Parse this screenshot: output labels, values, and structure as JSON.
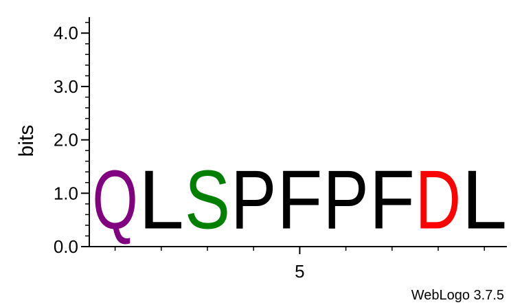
{
  "chart_data": {
    "type": "sequence-logo",
    "ylabel": "bits",
    "ylim": [
      0,
      4.3
    ],
    "yticks": [
      "0.0",
      "1.0",
      "2.0",
      "3.0",
      "4.0"
    ],
    "xticks": [
      {
        "position": 5,
        "label": "5"
      }
    ],
    "positions": [
      1,
      2,
      3,
      4,
      5,
      6,
      7,
      8,
      9
    ],
    "letters": [
      "Q",
      "L",
      "S",
      "P",
      "F",
      "P",
      "F",
      "D",
      "L"
    ],
    "values": [
      1.75,
      1.75,
      1.75,
      1.75,
      1.75,
      1.75,
      1.75,
      1.75,
      1.75
    ],
    "colors": [
      "#800080",
      "#000000",
      "#008000",
      "#000000",
      "#000000",
      "#000000",
      "#000000",
      "#ff0000",
      "#000000"
    ],
    "grid": false
  },
  "credit": "WebLogo 3.7.5"
}
